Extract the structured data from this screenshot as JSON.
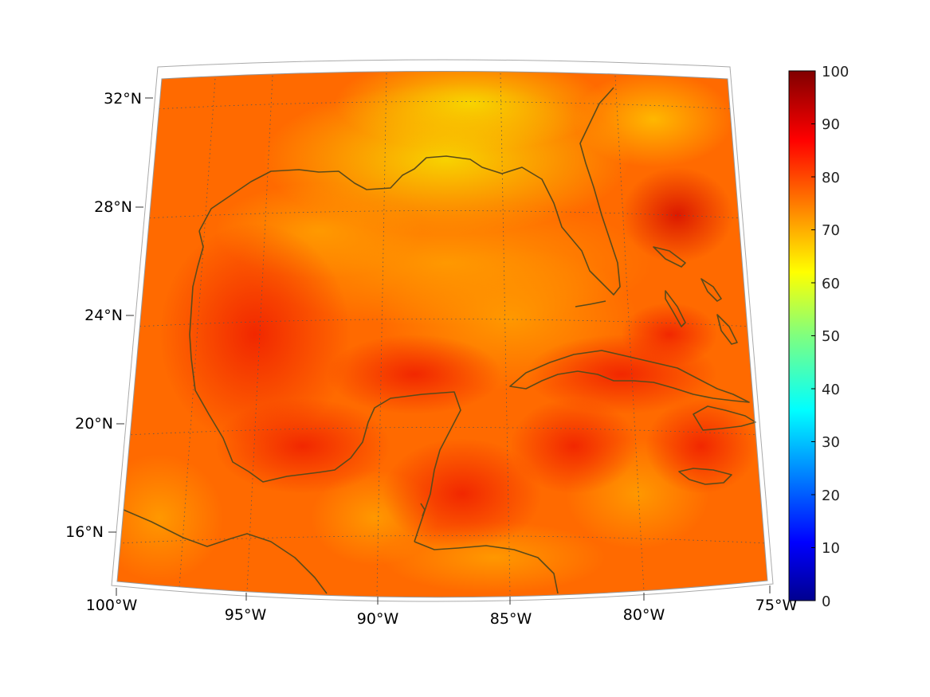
{
  "map": {
    "projection": "conic",
    "field": "heatmap",
    "coastline_color": "#5a4a1a",
    "graticule": "dotted",
    "lon_ticks": [
      "100°W",
      "95°W",
      "90°W",
      "85°W",
      "80°W",
      "75°W"
    ],
    "lat_ticks": [
      "32°N",
      "28°N",
      "24°N",
      "20°N",
      "16°N"
    ],
    "lon_range": [
      -100,
      -75
    ],
    "lat_range": [
      14,
      32.5
    ]
  },
  "colorbar": {
    "colormap": "jet",
    "range": [
      0,
      100
    ],
    "ticks": [
      "100",
      "90",
      "80",
      "70",
      "60",
      "50",
      "40",
      "30",
      "20",
      "10",
      "0"
    ]
  },
  "colors": {
    "dominant_low": "#f5d000",
    "dominant_mid": "#ff8c00",
    "dominant_high": "#ff3000"
  }
}
